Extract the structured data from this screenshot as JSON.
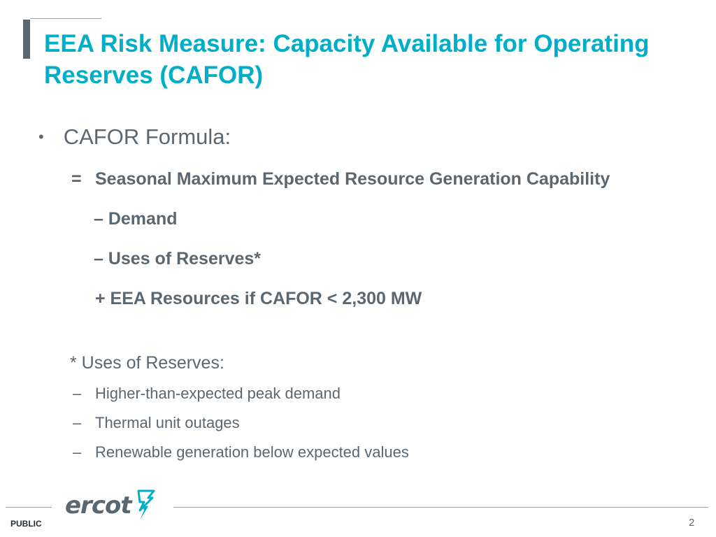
{
  "slide": {
    "title": "EEA Risk Measure: Capacity Available for Operating Reserves (CAFOR)",
    "bullet": "CAFOR Formula:",
    "formula": [
      {
        "symbol": "=",
        "text": "Seasonal Maximum Expected Resource Generation Capability"
      },
      {
        "text": "– Demand"
      },
      {
        "text": "– Uses of Reserves*"
      },
      {
        "text": "+ EEA Resources if CAFOR < 2,300 MW"
      }
    ],
    "note_title": "* Uses of Reserves:",
    "note_items": [
      "Higher-than-expected peak demand",
      "Thermal unit outages",
      "Renewable generation below expected values"
    ]
  },
  "footer": {
    "logo_text": "ercot",
    "classification": "PUBLIC",
    "page_number": "2"
  },
  "colors": {
    "title": "#00aec7",
    "body_text": "#5b6770",
    "logo_mark": "#00aec7"
  }
}
